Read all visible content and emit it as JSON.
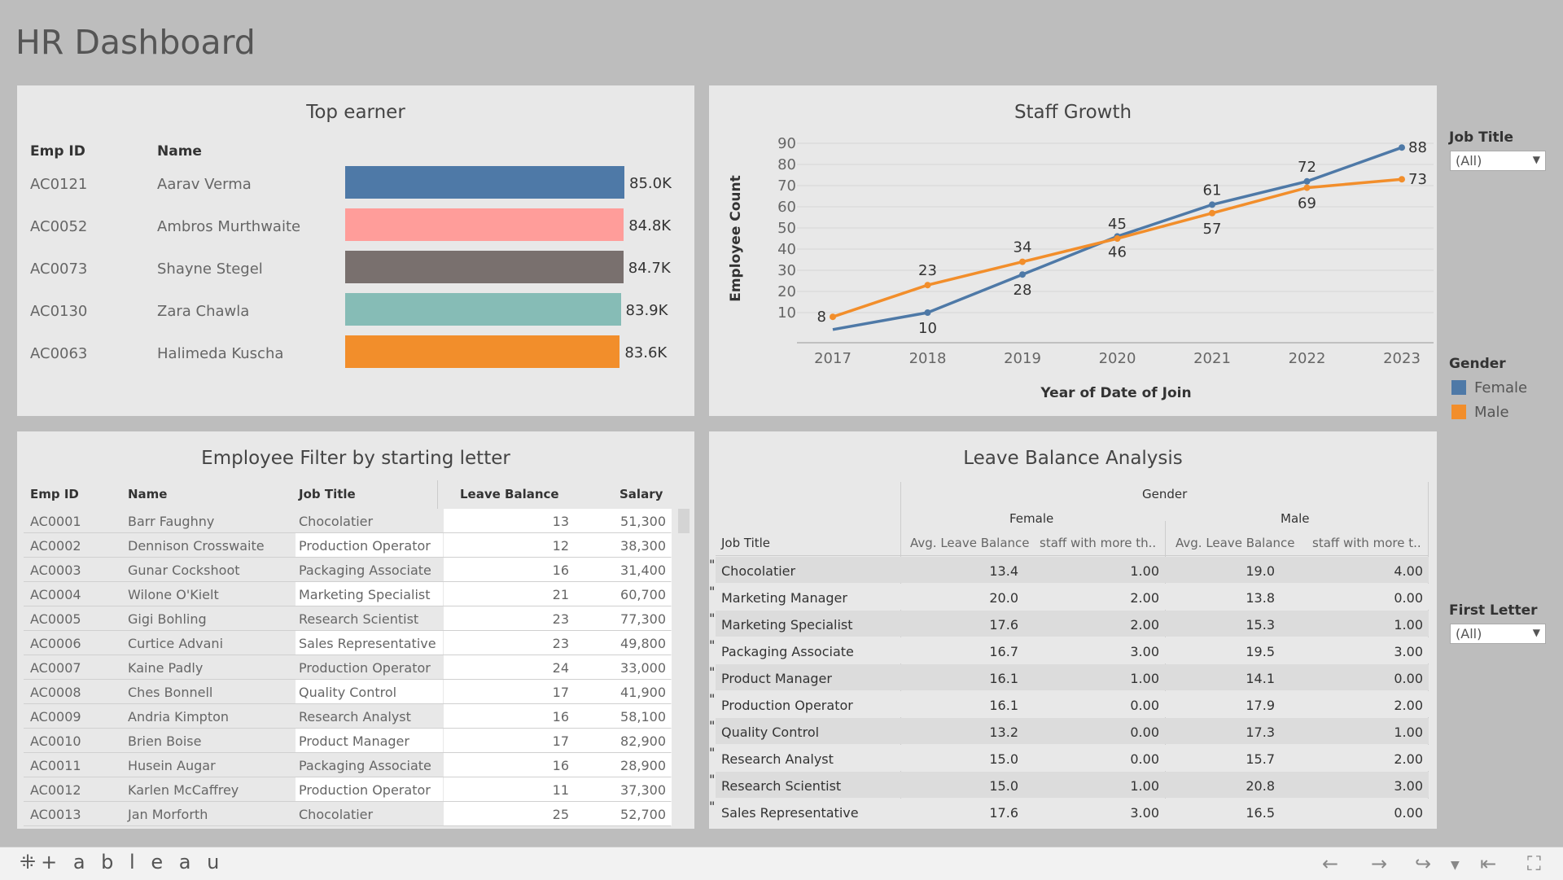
{
  "page_title": "HR Dashboard",
  "top_earner": {
    "title": "Top earner",
    "headers": {
      "emp_id": "Emp ID",
      "name": "Name"
    },
    "rows": [
      {
        "id": "AC0121",
        "name": "Aarav Verma",
        "value": 85.0,
        "label": "85.0K",
        "color": "#4e79a7"
      },
      {
        "id": "AC0052",
        "name": "Ambros Murthwaite",
        "value": 84.8,
        "label": "84.8K",
        "color": "#ff9d9a"
      },
      {
        "id": "AC0073",
        "name": "Shayne Stegel",
        "value": 84.7,
        "label": "84.7K",
        "color": "#79706e"
      },
      {
        "id": "AC0130",
        "name": "Zara Chawla",
        "value": 83.9,
        "label": "83.9K",
        "color": "#86bcb6"
      },
      {
        "id": "AC0063",
        "name": "Halimeda Kuscha",
        "value": 83.6,
        "label": "83.6K",
        "color": "#f28e2b"
      }
    ]
  },
  "staff_growth": {
    "title": "Staff Growth",
    "chart_data": {
      "type": "line",
      "x": [
        "2017",
        "2018",
        "2019",
        "2020",
        "2021",
        "2022",
        "2023"
      ],
      "series": [
        {
          "name": "Female",
          "color": "#4e79a7",
          "values": [
            null,
            10,
            28,
            46,
            61,
            72,
            88
          ],
          "start_value": 2
        },
        {
          "name": "Male",
          "color": "#f28e2b",
          "values": [
            8,
            23,
            34,
            45,
            57,
            69,
            73
          ]
        }
      ],
      "xlabel": "Year of Date of Join",
      "ylabel": "Employee Count",
      "yticks": [
        10,
        20,
        30,
        40,
        50,
        60,
        70,
        80,
        90
      ],
      "ylim": [
        0,
        95
      ]
    }
  },
  "filters": {
    "job_title_label": "Job Title",
    "job_title_value": "(All)",
    "gender_label": "Gender",
    "gender_items": [
      {
        "label": "Female",
        "color": "#4e79a7"
      },
      {
        "label": "Male",
        "color": "#f28e2b"
      }
    ],
    "first_letter_label": "First Letter",
    "first_letter_value": "(All)"
  },
  "employee_filter": {
    "title": "Employee Filter by starting letter",
    "headers": {
      "emp_id": "Emp ID",
      "name": "Name",
      "job": "Job Title",
      "leave": "Leave Balance",
      "salary": "Salary"
    },
    "rows": [
      {
        "id": "AC0001",
        "name": "Barr Faughny",
        "job": "Chocolatier",
        "leave": "13",
        "salary": "51,300"
      },
      {
        "id": "AC0002",
        "name": "Dennison Crosswaite",
        "job": "Production Operator",
        "leave": "12",
        "salary": "38,300"
      },
      {
        "id": "AC0003",
        "name": "Gunar Cockshoot",
        "job": "Packaging Associate",
        "leave": "16",
        "salary": "31,400"
      },
      {
        "id": "AC0004",
        "name": "Wilone O'Kielt",
        "job": "Marketing Specialist",
        "leave": "21",
        "salary": "60,700"
      },
      {
        "id": "AC0005",
        "name": "Gigi Bohling",
        "job": "Research Scientist",
        "leave": "23",
        "salary": "77,300"
      },
      {
        "id": "AC0006",
        "name": "Curtice Advani",
        "job": "Sales Representative",
        "leave": "23",
        "salary": "49,800"
      },
      {
        "id": "AC0007",
        "name": "Kaine Padly",
        "job": "Production Operator",
        "leave": "24",
        "salary": "33,000"
      },
      {
        "id": "AC0008",
        "name": "Ches Bonnell",
        "job": "Quality Control",
        "leave": "17",
        "salary": "41,900"
      },
      {
        "id": "AC0009",
        "name": "Andria Kimpton",
        "job": "Research Analyst",
        "leave": "16",
        "salary": "58,100"
      },
      {
        "id": "AC0010",
        "name": "Brien Boise",
        "job": "Product Manager",
        "leave": "17",
        "salary": "82,900"
      },
      {
        "id": "AC0011",
        "name": "Husein Augar",
        "job": "Packaging Associate",
        "leave": "16",
        "salary": "28,900"
      },
      {
        "id": "AC0012",
        "name": "Karlen McCaffrey",
        "job": "Production Operator",
        "leave": "11",
        "salary": "37,300"
      },
      {
        "id": "AC0013",
        "name": "Jan Morforth",
        "job": "Chocolatier",
        "leave": "25",
        "salary": "52,700"
      }
    ]
  },
  "leave_balance": {
    "title": "Leave Balance Analysis",
    "gender_header": "Gender",
    "female_header": "Female",
    "male_header": "Male",
    "job_title_header": "Job Title",
    "avg_header": "Avg. Leave Balance",
    "staff_header_female": "staff with more th..",
    "staff_header_male": "staff with more t..",
    "rows": [
      {
        "job": "Chocolatier",
        "f_avg": "13.4",
        "f_staff": "1.00",
        "m_avg": "19.0",
        "m_staff": "4.00"
      },
      {
        "job": "Marketing Manager",
        "f_avg": "20.0",
        "f_staff": "2.00",
        "m_avg": "13.8",
        "m_staff": "0.00"
      },
      {
        "job": "Marketing Specialist",
        "f_avg": "17.6",
        "f_staff": "2.00",
        "m_avg": "15.3",
        "m_staff": "1.00"
      },
      {
        "job": "Packaging Associate",
        "f_avg": "16.7",
        "f_staff": "3.00",
        "m_avg": "19.5",
        "m_staff": "3.00"
      },
      {
        "job": "Product Manager",
        "f_avg": "16.1",
        "f_staff": "1.00",
        "m_avg": "14.1",
        "m_staff": "0.00"
      },
      {
        "job": "Production Operator",
        "f_avg": "16.1",
        "f_staff": "0.00",
        "m_avg": "17.9",
        "m_staff": "2.00"
      },
      {
        "job": "Quality Control",
        "f_avg": "13.2",
        "f_staff": "0.00",
        "m_avg": "17.3",
        "m_staff": "1.00"
      },
      {
        "job": "Research Analyst",
        "f_avg": "15.0",
        "f_staff": "0.00",
        "m_avg": "15.7",
        "m_staff": "2.00"
      },
      {
        "job": "Research Scientist",
        "f_avg": "15.0",
        "f_staff": "1.00",
        "m_avg": "20.8",
        "m_staff": "3.00"
      },
      {
        "job": "Sales Representative",
        "f_avg": "17.6",
        "f_staff": "3.00",
        "m_avg": "16.5",
        "m_staff": "0.00"
      }
    ]
  },
  "footer": {
    "logo_text": "+ a b l e a u",
    "icons": [
      "undo-icon",
      "redo-icon",
      "revert-icon",
      "dropdown-icon",
      "reset-icon",
      "fullscreen-icon"
    ]
  }
}
